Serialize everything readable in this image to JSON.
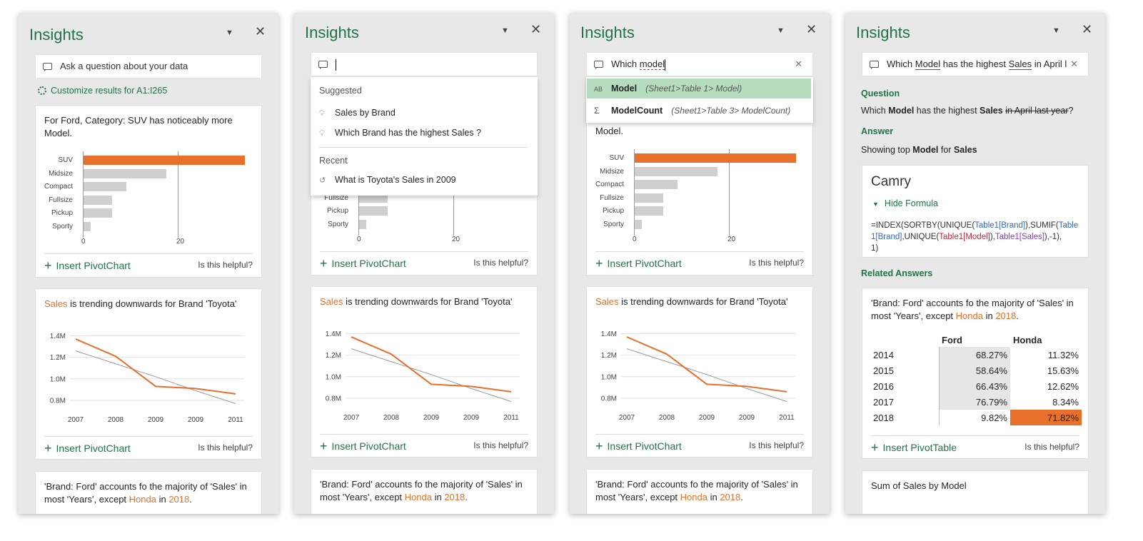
{
  "panel_title": "Insights",
  "search_placeholder": "Ask a question about your data",
  "customize_label": "Customize results for A1:I265",
  "insert_pivotchart": "Insert PivotChart",
  "insert_pivottable": "Insert PivotTable",
  "helpful_text": "Is this helpful?",
  "card_bar": {
    "text": "For Ford, Category: SUV has noticeably more Model.",
    "text_tail": "Model.",
    "chart_data": {
      "type": "bar",
      "categories": [
        "SUV",
        "Midsize",
        "Compact",
        "Fullsize",
        "Pickup",
        "Sporty"
      ],
      "values": [
        34,
        17.5,
        9,
        6,
        6,
        1.5
      ],
      "highlight": "SUV",
      "xticks": [
        "0",
        "20"
      ],
      "xlim": [
        0,
        34
      ]
    }
  },
  "card_line": {
    "text_highlight": "Sales",
    "text_rest": " is trending downwards for Brand 'Toyota'",
    "chart_data": {
      "type": "line",
      "x": [
        "2007",
        "2008",
        "2009",
        "2009",
        "2011"
      ],
      "series": [
        {
          "values": [
            1.37,
            1.21,
            0.93,
            0.91,
            0.86
          ],
          "color": "#e8702a"
        },
        {
          "values": [
            1.26,
            1.14,
            1.02,
            0.89,
            0.77
          ],
          "color": "#9a9a9a"
        }
      ],
      "yticks": [
        "1.4M",
        "1.2M",
        "1.0M",
        "0.8M"
      ],
      "ylim": [
        0.72,
        1.45
      ]
    }
  },
  "card_brand": {
    "text_a": "'Brand: Ford' accounts fo the majority of 'Sales' in most 'Years', except ",
    "honda": "Honda",
    "text_b": " in ",
    "year": "2018",
    "text_c": "."
  },
  "p2": {
    "suggested_header": "Suggested",
    "suggested": [
      "Sales by Brand",
      "Which Brand has the highest Sales ?"
    ],
    "recent_header": "Recent",
    "recent": [
      "What is Toyota's Sales in 2009"
    ]
  },
  "p3": {
    "query_prefix": "Which ",
    "query_word": "model",
    "ac": [
      {
        "icon": "AB",
        "name": "Model",
        "path": "(Sheet1>Table 1> Model)"
      },
      {
        "icon": "Σ",
        "name": "ModelCount",
        "path": "(Sheet1>Table 3> ModelCount)"
      }
    ]
  },
  "p4": {
    "query_a": "Which ",
    "query_model": "Model",
    "query_b": " has the highest ",
    "query_sales": "Sales",
    "query_c": " in April las",
    "question_header": "Question",
    "q_a": "Which ",
    "q_model": "Model",
    "q_b": " has the highest ",
    "q_sales": "Sales",
    "q_strike": "in April last year",
    "q_c": "?",
    "answer_header": "Answer",
    "a_a": "Showing top ",
    "a_model": "Model",
    "a_b": " for ",
    "a_sales": "Sales",
    "answer_value": "Camry",
    "hide_formula": "Hide Formula",
    "formula": [
      "=INDEX(SORTBY(UNIQUE(",
      "Table1[Brand]",
      "),SUMIF(",
      "Table1[Brand]",
      ",UNIQUE(",
      "Table1[Model]",
      "),",
      "Table1[Sales]",
      "),-1),",
      "1)"
    ],
    "related_header": "Related Answers",
    "table": {
      "columns": [
        "Ford",
        "Honda"
      ],
      "rows": [
        {
          "year": "2014",
          "ford": "68.27%",
          "honda": "11.32%"
        },
        {
          "year": "2015",
          "ford": "58.64%",
          "honda": "15.63%"
        },
        {
          "year": "2016",
          "ford": "66.43%",
          "honda": "12.62%"
        },
        {
          "year": "2017",
          "ford": "76.79%",
          "honda": "8.34%"
        },
        {
          "year": "2018",
          "ford": "9.82%",
          "honda": "71.82%"
        }
      ]
    },
    "sum_card": "Sum of Sales by Model"
  },
  "colors": {
    "accent": "#217346",
    "highlight": "#e8702a",
    "autocomplete_selected": "#b6dcc0"
  }
}
